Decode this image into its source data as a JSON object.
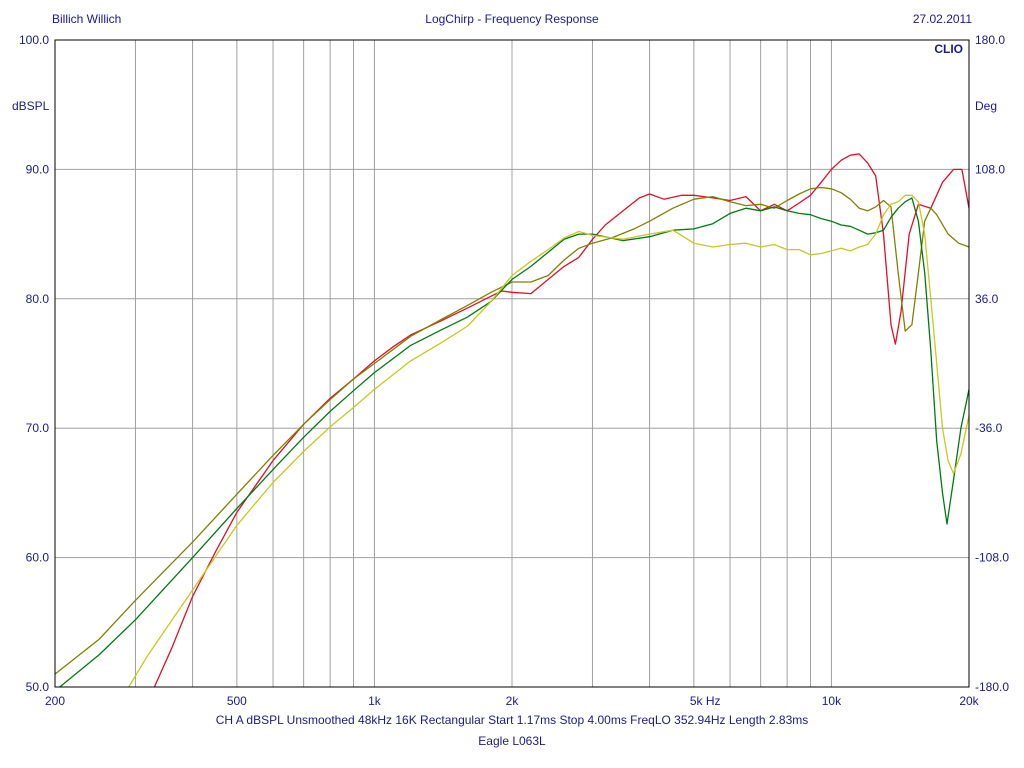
{
  "header": {
    "left": "Billich Willich",
    "center": "LogChirp - Frequency Response",
    "right": "27.02.2011"
  },
  "footer": {
    "info": "CH A   dBSPL   Unsmoothed   48kHz   16K   Rectangular   Start 1.17ms    Stop 4.00ms    FreqLO 352.94Hz    Length 2.83ms",
    "caption": "Eagle L063L"
  },
  "colors": {
    "background": "#ffffff",
    "frame": "#000000",
    "grid": "#a0a0a0",
    "text": "#1a1a8c"
  },
  "chart_data": {
    "type": "line",
    "title": "LogChirp - Frequency Response",
    "brand": "CLIO",
    "x_scale": "log",
    "xlim": [
      200,
      20000
    ],
    "ylim": [
      50,
      100
    ],
    "y2lim": [
      -180,
      180
    ],
    "ylabel": "dBSPL",
    "y2label": "Deg",
    "grid": true,
    "x_tick_labels": [
      {
        "v": 200,
        "label": "200"
      },
      {
        "v": 500,
        "label": "500"
      },
      {
        "v": 1000,
        "label": "1k"
      },
      {
        "v": 2000,
        "label": "2k"
      },
      {
        "v": 5000,
        "label": "5k  Hz"
      },
      {
        "v": 10000,
        "label": "10k"
      },
      {
        "v": 20000,
        "label": "20k"
      }
    ],
    "x_gridlines": [
      300,
      400,
      500,
      600,
      700,
      800,
      900,
      1000,
      2000,
      3000,
      4000,
      5000,
      6000,
      7000,
      8000,
      9000,
      10000
    ],
    "y_ticks": [
      {
        "v": 100,
        "label": "100.0"
      },
      {
        "v": 90,
        "label": "90.0"
      },
      {
        "v": 80,
        "label": "80.0"
      },
      {
        "v": 70,
        "label": "70.0"
      },
      {
        "v": 60,
        "label": "60.0"
      },
      {
        "v": 50,
        "label": "50.0"
      }
    ],
    "y2_ticks": [
      {
        "v": 180,
        "label": "180.0"
      },
      {
        "v": 108,
        "label": "108.0"
      },
      {
        "v": 36,
        "label": "36.0"
      },
      {
        "v": -36,
        "label": "-36.0"
      },
      {
        "v": -108,
        "label": "-108.0"
      },
      {
        "v": -180,
        "label": "-180.0"
      }
    ],
    "series": [
      {
        "color": "#e0102a",
        "points": [
          [
            330,
            50
          ],
          [
            360,
            53
          ],
          [
            400,
            57
          ],
          [
            450,
            60.5
          ],
          [
            500,
            63.5
          ],
          [
            600,
            67.5
          ],
          [
            700,
            70.3
          ],
          [
            800,
            72.3
          ],
          [
            900,
            73.8
          ],
          [
            1000,
            75.2
          ],
          [
            1100,
            76.3
          ],
          [
            1200,
            77.2
          ],
          [
            1400,
            78.3
          ],
          [
            1600,
            79.3
          ],
          [
            1800,
            80.2
          ],
          [
            1900,
            80.6
          ],
          [
            2000,
            80.5
          ],
          [
            2200,
            80.4
          ],
          [
            2400,
            81.5
          ],
          [
            2600,
            82.5
          ],
          [
            2800,
            83.2
          ],
          [
            3000,
            84.6
          ],
          [
            3200,
            85.7
          ],
          [
            3500,
            86.8
          ],
          [
            3800,
            87.8
          ],
          [
            4000,
            88.1
          ],
          [
            4300,
            87.7
          ],
          [
            4700,
            88.0
          ],
          [
            5000,
            88.0
          ],
          [
            5500,
            87.8
          ],
          [
            6000,
            87.6
          ],
          [
            6500,
            87.9
          ],
          [
            7000,
            86.8
          ],
          [
            7500,
            87.3
          ],
          [
            8000,
            86.8
          ],
          [
            8500,
            87.4
          ],
          [
            9000,
            88.0
          ],
          [
            9500,
            89.0
          ],
          [
            10000,
            90.0
          ],
          [
            10500,
            90.7
          ],
          [
            11000,
            91.1
          ],
          [
            11500,
            91.2
          ],
          [
            12000,
            90.5
          ],
          [
            12500,
            89.5
          ],
          [
            13000,
            85
          ],
          [
            13500,
            78
          ],
          [
            13800,
            76.5
          ],
          [
            14200,
            79
          ],
          [
            14800,
            85
          ],
          [
            15500,
            87.3
          ],
          [
            16500,
            87
          ],
          [
            17500,
            89
          ],
          [
            18500,
            90
          ],
          [
            19300,
            90
          ],
          [
            20000,
            87
          ]
        ]
      },
      {
        "color": "#808000",
        "points": [
          [
            200,
            51
          ],
          [
            250,
            53.7
          ],
          [
            300,
            56.7
          ],
          [
            400,
            61.2
          ],
          [
            500,
            64.9
          ],
          [
            600,
            67.9
          ],
          [
            700,
            70.3
          ],
          [
            800,
            72.2
          ],
          [
            900,
            73.8
          ],
          [
            1000,
            75.0
          ],
          [
            1200,
            77.1
          ],
          [
            1400,
            78.4
          ],
          [
            1600,
            79.5
          ],
          [
            1800,
            80.5
          ],
          [
            2000,
            81.3
          ],
          [
            2200,
            81.3
          ],
          [
            2400,
            81.8
          ],
          [
            2600,
            83.0
          ],
          [
            2800,
            83.9
          ],
          [
            3000,
            84.3
          ],
          [
            3300,
            84.7
          ],
          [
            3700,
            85.4
          ],
          [
            4000,
            86.0
          ],
          [
            4500,
            87.0
          ],
          [
            5000,
            87.7
          ],
          [
            5500,
            87.9
          ],
          [
            6000,
            87.5
          ],
          [
            6500,
            87.2
          ],
          [
            7000,
            87.3
          ],
          [
            7500,
            87.0
          ],
          [
            8000,
            87.6
          ],
          [
            8500,
            88.1
          ],
          [
            9000,
            88.5
          ],
          [
            9500,
            88.6
          ],
          [
            10000,
            88.5
          ],
          [
            10500,
            88.2
          ],
          [
            11000,
            87.7
          ],
          [
            11500,
            87.0
          ],
          [
            12000,
            86.8
          ],
          [
            12500,
            87.1
          ],
          [
            13000,
            87.6
          ],
          [
            13500,
            87.1
          ],
          [
            14000,
            82
          ],
          [
            14500,
            77.5
          ],
          [
            15000,
            78
          ],
          [
            15500,
            82
          ],
          [
            16000,
            86
          ],
          [
            16500,
            87
          ],
          [
            17000,
            86.5
          ],
          [
            18000,
            85
          ],
          [
            19000,
            84.3
          ],
          [
            20000,
            84
          ]
        ]
      },
      {
        "color": "#007a10",
        "points": [
          [
            200,
            49.7
          ],
          [
            250,
            52.5
          ],
          [
            300,
            55.2
          ],
          [
            400,
            60
          ],
          [
            500,
            63.8
          ],
          [
            600,
            66.8
          ],
          [
            700,
            69.3
          ],
          [
            800,
            71.3
          ],
          [
            900,
            72.9
          ],
          [
            1000,
            74.3
          ],
          [
            1200,
            76.4
          ],
          [
            1400,
            77.6
          ],
          [
            1600,
            78.6
          ],
          [
            1800,
            79.8
          ],
          [
            2000,
            81.5
          ],
          [
            2200,
            82.5
          ],
          [
            2400,
            83.6
          ],
          [
            2600,
            84.6
          ],
          [
            2800,
            85.0
          ],
          [
            3000,
            85.0
          ],
          [
            3500,
            84.5
          ],
          [
            4000,
            84.8
          ],
          [
            4500,
            85.3
          ],
          [
            5000,
            85.4
          ],
          [
            5500,
            85.8
          ],
          [
            6000,
            86.6
          ],
          [
            6500,
            87.0
          ],
          [
            7000,
            86.8
          ],
          [
            7500,
            87.1
          ],
          [
            8000,
            86.8
          ],
          [
            8500,
            86.6
          ],
          [
            9000,
            86.5
          ],
          [
            9500,
            86.2
          ],
          [
            10000,
            86.0
          ],
          [
            10500,
            85.7
          ],
          [
            11000,
            85.6
          ],
          [
            11500,
            85.3
          ],
          [
            12000,
            85.0
          ],
          [
            12500,
            85.1
          ],
          [
            13000,
            85.3
          ],
          [
            13500,
            86.3
          ],
          [
            14000,
            87.0
          ],
          [
            14500,
            87.5
          ],
          [
            15000,
            87.8
          ],
          [
            15500,
            86
          ],
          [
            16000,
            82
          ],
          [
            16500,
            76
          ],
          [
            17000,
            69
          ],
          [
            17500,
            65
          ],
          [
            17900,
            62.6
          ],
          [
            18500,
            66
          ],
          [
            19200,
            70
          ],
          [
            20000,
            73
          ]
        ]
      },
      {
        "color": "#c8c820",
        "points": [
          [
            290,
            50
          ],
          [
            320,
            52.5
          ],
          [
            400,
            57.5
          ],
          [
            500,
            62.5
          ],
          [
            600,
            65.8
          ],
          [
            700,
            68.2
          ],
          [
            800,
            70.1
          ],
          [
            900,
            71.6
          ],
          [
            1000,
            73.0
          ],
          [
            1200,
            75.2
          ],
          [
            1400,
            76.6
          ],
          [
            1600,
            77.9
          ],
          [
            1800,
            79.8
          ],
          [
            2000,
            81.8
          ],
          [
            2200,
            82.9
          ],
          [
            2400,
            83.8
          ],
          [
            2600,
            84.7
          ],
          [
            2800,
            85.2
          ],
          [
            3000,
            84.9
          ],
          [
            3500,
            84.6
          ],
          [
            4000,
            85.0
          ],
          [
            4500,
            85.3
          ],
          [
            5000,
            84.3
          ],
          [
            5500,
            84.0
          ],
          [
            6000,
            84.2
          ],
          [
            6500,
            84.3
          ],
          [
            7000,
            84.0
          ],
          [
            7500,
            84.2
          ],
          [
            8000,
            83.8
          ],
          [
            8500,
            83.8
          ],
          [
            9000,
            83.4
          ],
          [
            9500,
            83.5
          ],
          [
            10000,
            83.7
          ],
          [
            10500,
            83.9
          ],
          [
            11000,
            83.7
          ],
          [
            11500,
            84.0
          ],
          [
            12000,
            84.2
          ],
          [
            12500,
            85.0
          ],
          [
            13000,
            86.5
          ],
          [
            13500,
            87.3
          ],
          [
            14000,
            87.5
          ],
          [
            14500,
            88.0
          ],
          [
            15000,
            88.0
          ],
          [
            15500,
            87.5
          ],
          [
            16000,
            85
          ],
          [
            16500,
            80
          ],
          [
            17000,
            75
          ],
          [
            17500,
            70
          ],
          [
            18000,
            67.5
          ],
          [
            18500,
            66.5
          ],
          [
            19200,
            68
          ],
          [
            20000,
            71
          ]
        ]
      }
    ]
  }
}
